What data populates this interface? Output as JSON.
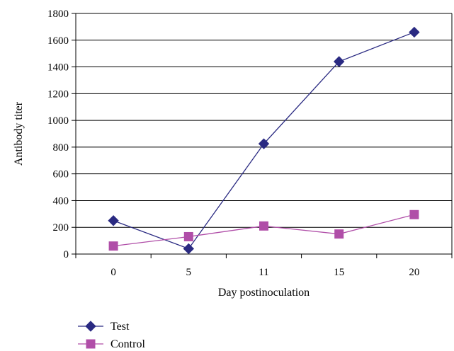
{
  "chart_data": {
    "type": "line",
    "categories": [
      "0",
      "5",
      "11",
      "15",
      "20"
    ],
    "series": [
      {
        "name": "Test",
        "values": [
          250,
          40,
          825,
          1440,
          1660
        ],
        "color": "#2a2a82",
        "marker": "diamond"
      },
      {
        "name": "Control",
        "values": [
          60,
          130,
          210,
          150,
          295
        ],
        "color": "#b04ea8",
        "marker": "square"
      }
    ],
    "xlabel": "Day postinoculation",
    "ylabel": "Antibody titer",
    "ylim": [
      0,
      1800
    ],
    "yticks": [
      0,
      200,
      400,
      600,
      800,
      1000,
      1200,
      1400,
      1600,
      1800
    ],
    "grid": true,
    "legend_position": "bottom-left"
  }
}
